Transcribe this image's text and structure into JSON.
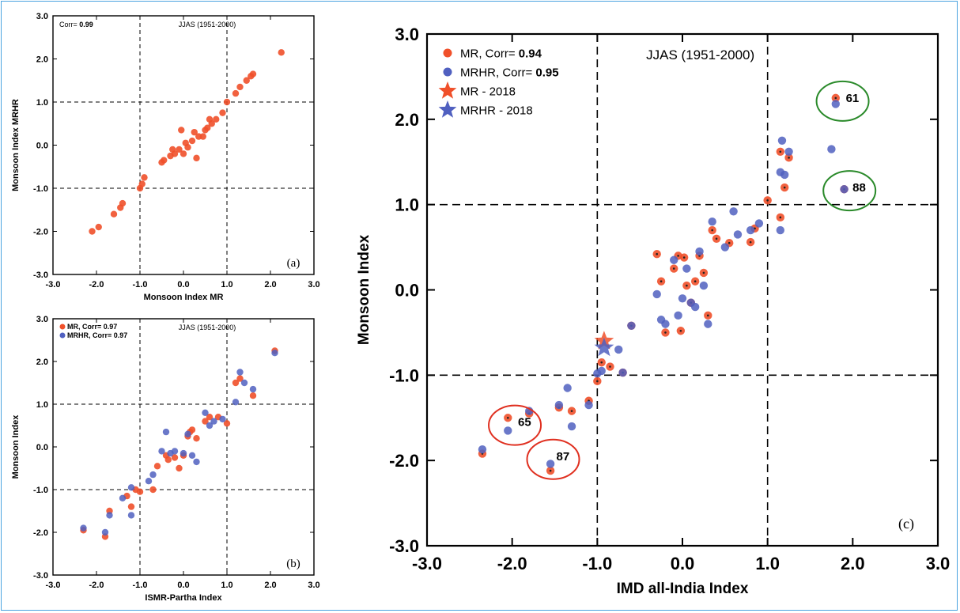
{
  "colors": {
    "mr": "#f0502a",
    "mrhr": "#5060c0",
    "green_circle": "#2a8a2a",
    "red_circle": "#e03020",
    "frame": "#4aa3df"
  },
  "chart_data": [
    {
      "id": "a",
      "type": "scatter",
      "panel_label": "(a)",
      "corr_label": "Corr=",
      "corr_value": "0.99",
      "period": "JJAS (1951-2000)",
      "xlabel": "Monsoon Index MR",
      "ylabel": "Monsoon Index MRHR",
      "xlim": [
        -3,
        3
      ],
      "ylim": [
        -3,
        3
      ],
      "xticks": [
        "-3.0",
        "-2.0",
        "-1.0",
        "0.0",
        "1.0",
        "2.0",
        "3.0"
      ],
      "yticks": [
        "-3.0",
        "-2.0",
        "-1.0",
        "0.0",
        "1.0",
        "2.0",
        "3.0"
      ],
      "ref_lines": {
        "x": [
          -1,
          1
        ],
        "y": [
          -1,
          1
        ]
      },
      "series": [
        {
          "color_key": "mr",
          "points": [
            [
              -2.1,
              -2.0
            ],
            [
              -1.95,
              -1.9
            ],
            [
              -1.6,
              -1.6
            ],
            [
              -1.45,
              -1.45
            ],
            [
              -1.4,
              -1.35
            ],
            [
              -1.0,
              -1.0
            ],
            [
              -0.95,
              -0.9
            ],
            [
              -0.9,
              -0.75
            ],
            [
              -0.5,
              -0.4
            ],
            [
              -0.45,
              -0.35
            ],
            [
              -0.3,
              -0.25
            ],
            [
              -0.25,
              -0.1
            ],
            [
              -0.2,
              -0.2
            ],
            [
              -0.1,
              -0.1
            ],
            [
              -0.05,
              0.35
            ],
            [
              0.0,
              -0.2
            ],
            [
              0.05,
              0.05
            ],
            [
              0.1,
              -0.05
            ],
            [
              0.2,
              0.1
            ],
            [
              0.25,
              0.3
            ],
            [
              0.3,
              -0.3
            ],
            [
              0.35,
              0.2
            ],
            [
              0.45,
              0.2
            ],
            [
              0.5,
              0.35
            ],
            [
              0.55,
              0.4
            ],
            [
              0.6,
              0.6
            ],
            [
              0.65,
              0.5
            ],
            [
              0.75,
              0.6
            ],
            [
              0.9,
              0.75
            ],
            [
              1.0,
              1.0
            ],
            [
              1.2,
              1.2
            ],
            [
              1.3,
              1.35
            ],
            [
              1.45,
              1.5
            ],
            [
              1.55,
              1.6
            ],
            [
              1.6,
              1.65
            ],
            [
              2.25,
              2.15
            ]
          ]
        }
      ]
    },
    {
      "id": "b",
      "type": "scatter",
      "panel_label": "(b)",
      "period": "JJAS (1951-2000)",
      "xlabel": "ISMR-Partha Index",
      "ylabel": "Monsoon Index",
      "xlim": [
        -3,
        3
      ],
      "ylim": [
        -3,
        3
      ],
      "xticks": [
        "-3.0",
        "-2.0",
        "-1.0",
        "0.0",
        "1.0",
        "2.0",
        "3.0"
      ],
      "yticks": [
        "-3.0",
        "-2.0",
        "-1.0",
        "0.0",
        "1.0",
        "2.0",
        "3.0"
      ],
      "ref_lines": {
        "x": [
          -1,
          1
        ],
        "y": [
          -1,
          1
        ]
      },
      "legend": [
        {
          "label": "MR, Corr=",
          "value": "0.97",
          "color_key": "mr"
        },
        {
          "label": "MRHR, Corr=",
          "value": "0.97",
          "color_key": "mrhr"
        }
      ],
      "series": [
        {
          "color_key": "mr",
          "points": [
            [
              -2.3,
              -1.95
            ],
            [
              -1.8,
              -2.1
            ],
            [
              -1.7,
              -1.5
            ],
            [
              -1.3,
              -1.15
            ],
            [
              -1.2,
              -1.4
            ],
            [
              -1.1,
              -1.0
            ],
            [
              -1.0,
              -1.05
            ],
            [
              -0.7,
              -1.0
            ],
            [
              -0.6,
              -0.45
            ],
            [
              -0.4,
              -0.2
            ],
            [
              -0.35,
              -0.3
            ],
            [
              -0.2,
              -0.25
            ],
            [
              -0.1,
              -0.5
            ],
            [
              0.0,
              -0.2
            ],
            [
              0.1,
              0.25
            ],
            [
              0.15,
              0.35
            ],
            [
              0.2,
              0.4
            ],
            [
              0.3,
              0.2
            ],
            [
              0.5,
              0.6
            ],
            [
              0.6,
              0.7
            ],
            [
              0.8,
              0.7
            ],
            [
              1.0,
              0.55
            ],
            [
              1.2,
              1.5
            ],
            [
              1.3,
              1.6
            ],
            [
              1.6,
              1.2
            ],
            [
              2.1,
              2.25
            ]
          ]
        },
        {
          "color_key": "mrhr",
          "points": [
            [
              -2.3,
              -1.9
            ],
            [
              -1.8,
              -2.0
            ],
            [
              -1.7,
              -1.6
            ],
            [
              -1.4,
              -1.2
            ],
            [
              -1.2,
              -1.6
            ],
            [
              -1.2,
              -0.95
            ],
            [
              -0.8,
              -0.8
            ],
            [
              -0.7,
              -0.65
            ],
            [
              -0.5,
              -0.1
            ],
            [
              -0.4,
              0.35
            ],
            [
              -0.3,
              -0.15
            ],
            [
              -0.2,
              -0.1
            ],
            [
              0.0,
              -0.15
            ],
            [
              0.1,
              0.3
            ],
            [
              0.2,
              -0.2
            ],
            [
              0.3,
              -0.35
            ],
            [
              0.5,
              0.8
            ],
            [
              0.6,
              0.5
            ],
            [
              0.7,
              0.6
            ],
            [
              0.9,
              0.65
            ],
            [
              1.2,
              1.05
            ],
            [
              1.3,
              1.75
            ],
            [
              1.4,
              1.5
            ],
            [
              1.6,
              1.35
            ],
            [
              2.1,
              2.2
            ]
          ]
        }
      ]
    },
    {
      "id": "c",
      "type": "scatter",
      "panel_label": "(c)",
      "period": "JJAS (1951-2000)",
      "xlabel": "IMD all-India Index",
      "ylabel": "Monsoon Index",
      "xlim": [
        -3,
        3
      ],
      "ylim": [
        -3,
        3
      ],
      "xticks": [
        "-3.0",
        "-2.0",
        "-1.0",
        "0.0",
        "1.0",
        "2.0",
        "3.0"
      ],
      "yticks": [
        "-3.0",
        "-2.0",
        "-1.0",
        "0.0",
        "1.0",
        "2.0",
        "3.0"
      ],
      "ref_lines": {
        "x": [
          -1,
          1
        ],
        "y": [
          -1,
          1
        ]
      },
      "legend": [
        {
          "label": "MR, Corr=",
          "value": "0.94",
          "color_key": "mr",
          "marker": "dot"
        },
        {
          "label": "MRHR, Corr=",
          "value": "0.95",
          "color_key": "mrhr",
          "marker": "dot"
        },
        {
          "label": "MR - 2018",
          "color_key": "mr",
          "marker": "star"
        },
        {
          "label": "MRHR - 2018",
          "color_key": "mrhr",
          "marker": "star"
        }
      ],
      "annotations": [
        {
          "text": "61",
          "x": 1.9,
          "y": 2.25,
          "circle_color_key": "green_circle"
        },
        {
          "text": "88",
          "x": 1.98,
          "y": 1.2,
          "circle_color_key": "green_circle"
        },
        {
          "text": "65",
          "x": -1.95,
          "y": -1.55,
          "circle_color_key": "red_circle"
        },
        {
          "text": "87",
          "x": -1.5,
          "y": -1.95,
          "circle_color_key": "red_circle"
        }
      ],
      "stars": [
        {
          "color_key": "mr",
          "x": -0.92,
          "y": -0.6
        },
        {
          "color_key": "mrhr",
          "x": -0.92,
          "y": -0.68
        }
      ],
      "series": [
        {
          "color_key": "mr",
          "points": [
            [
              -2.35,
              -1.92
            ],
            [
              -2.05,
              -1.5
            ],
            [
              -1.8,
              -1.45
            ],
            [
              -1.55,
              -2.12
            ],
            [
              -1.45,
              -1.38
            ],
            [
              -1.3,
              -1.42
            ],
            [
              -1.1,
              -1.3
            ],
            [
              -1.0,
              -1.07
            ],
            [
              -0.95,
              -0.85
            ],
            [
              -0.85,
              -0.9
            ],
            [
              -0.7,
              -0.97
            ],
            [
              -0.6,
              -0.42
            ],
            [
              -0.3,
              0.42
            ],
            [
              -0.25,
              0.1
            ],
            [
              -0.2,
              -0.5
            ],
            [
              -0.1,
              0.25
            ],
            [
              -0.05,
              0.4
            ],
            [
              -0.02,
              -0.48
            ],
            [
              0.02,
              0.38
            ],
            [
              0.05,
              0.05
            ],
            [
              0.1,
              -0.15
            ],
            [
              0.15,
              0.1
            ],
            [
              0.2,
              0.4
            ],
            [
              0.25,
              0.2
            ],
            [
              0.3,
              -0.3
            ],
            [
              0.35,
              0.7
            ],
            [
              0.4,
              0.6
            ],
            [
              0.55,
              0.55
            ],
            [
              0.8,
              0.56
            ],
            [
              0.85,
              0.72
            ],
            [
              1.0,
              1.05
            ],
            [
              1.15,
              0.85
            ],
            [
              1.15,
              1.62
            ],
            [
              1.2,
              1.2
            ],
            [
              1.25,
              1.55
            ],
            [
              1.8,
              2.25
            ],
            [
              1.9,
              1.18
            ]
          ]
        },
        {
          "color_key": "mrhr",
          "points": [
            [
              -2.35,
              -1.87
            ],
            [
              -2.05,
              -1.65
            ],
            [
              -1.8,
              -1.42
            ],
            [
              -1.55,
              -2.04
            ],
            [
              -1.45,
              -1.35
            ],
            [
              -1.3,
              -1.6
            ],
            [
              -1.35,
              -1.15
            ],
            [
              -1.1,
              -1.35
            ],
            [
              -1.0,
              -0.98
            ],
            [
              -0.95,
              -0.95
            ],
            [
              -0.75,
              -0.7
            ],
            [
              -0.7,
              -0.97
            ],
            [
              -0.6,
              -0.42
            ],
            [
              -0.3,
              -0.05
            ],
            [
              -0.25,
              -0.35
            ],
            [
              -0.2,
              -0.4
            ],
            [
              -0.1,
              0.35
            ],
            [
              -0.05,
              -0.3
            ],
            [
              0.0,
              -0.1
            ],
            [
              0.05,
              0.25
            ],
            [
              0.1,
              -0.15
            ],
            [
              0.15,
              -0.2
            ],
            [
              0.2,
              0.45
            ],
            [
              0.25,
              0.05
            ],
            [
              0.3,
              -0.4
            ],
            [
              0.35,
              0.8
            ],
            [
              0.5,
              0.5
            ],
            [
              0.6,
              0.92
            ],
            [
              0.65,
              0.65
            ],
            [
              0.8,
              0.7
            ],
            [
              0.9,
              0.78
            ],
            [
              1.15,
              0.7
            ],
            [
              1.15,
              1.38
            ],
            [
              1.17,
              1.75
            ],
            [
              1.2,
              1.35
            ],
            [
              1.25,
              1.62
            ],
            [
              1.75,
              1.65
            ],
            [
              1.8,
              2.18
            ],
            [
              1.9,
              1.18
            ]
          ]
        }
      ]
    }
  ]
}
